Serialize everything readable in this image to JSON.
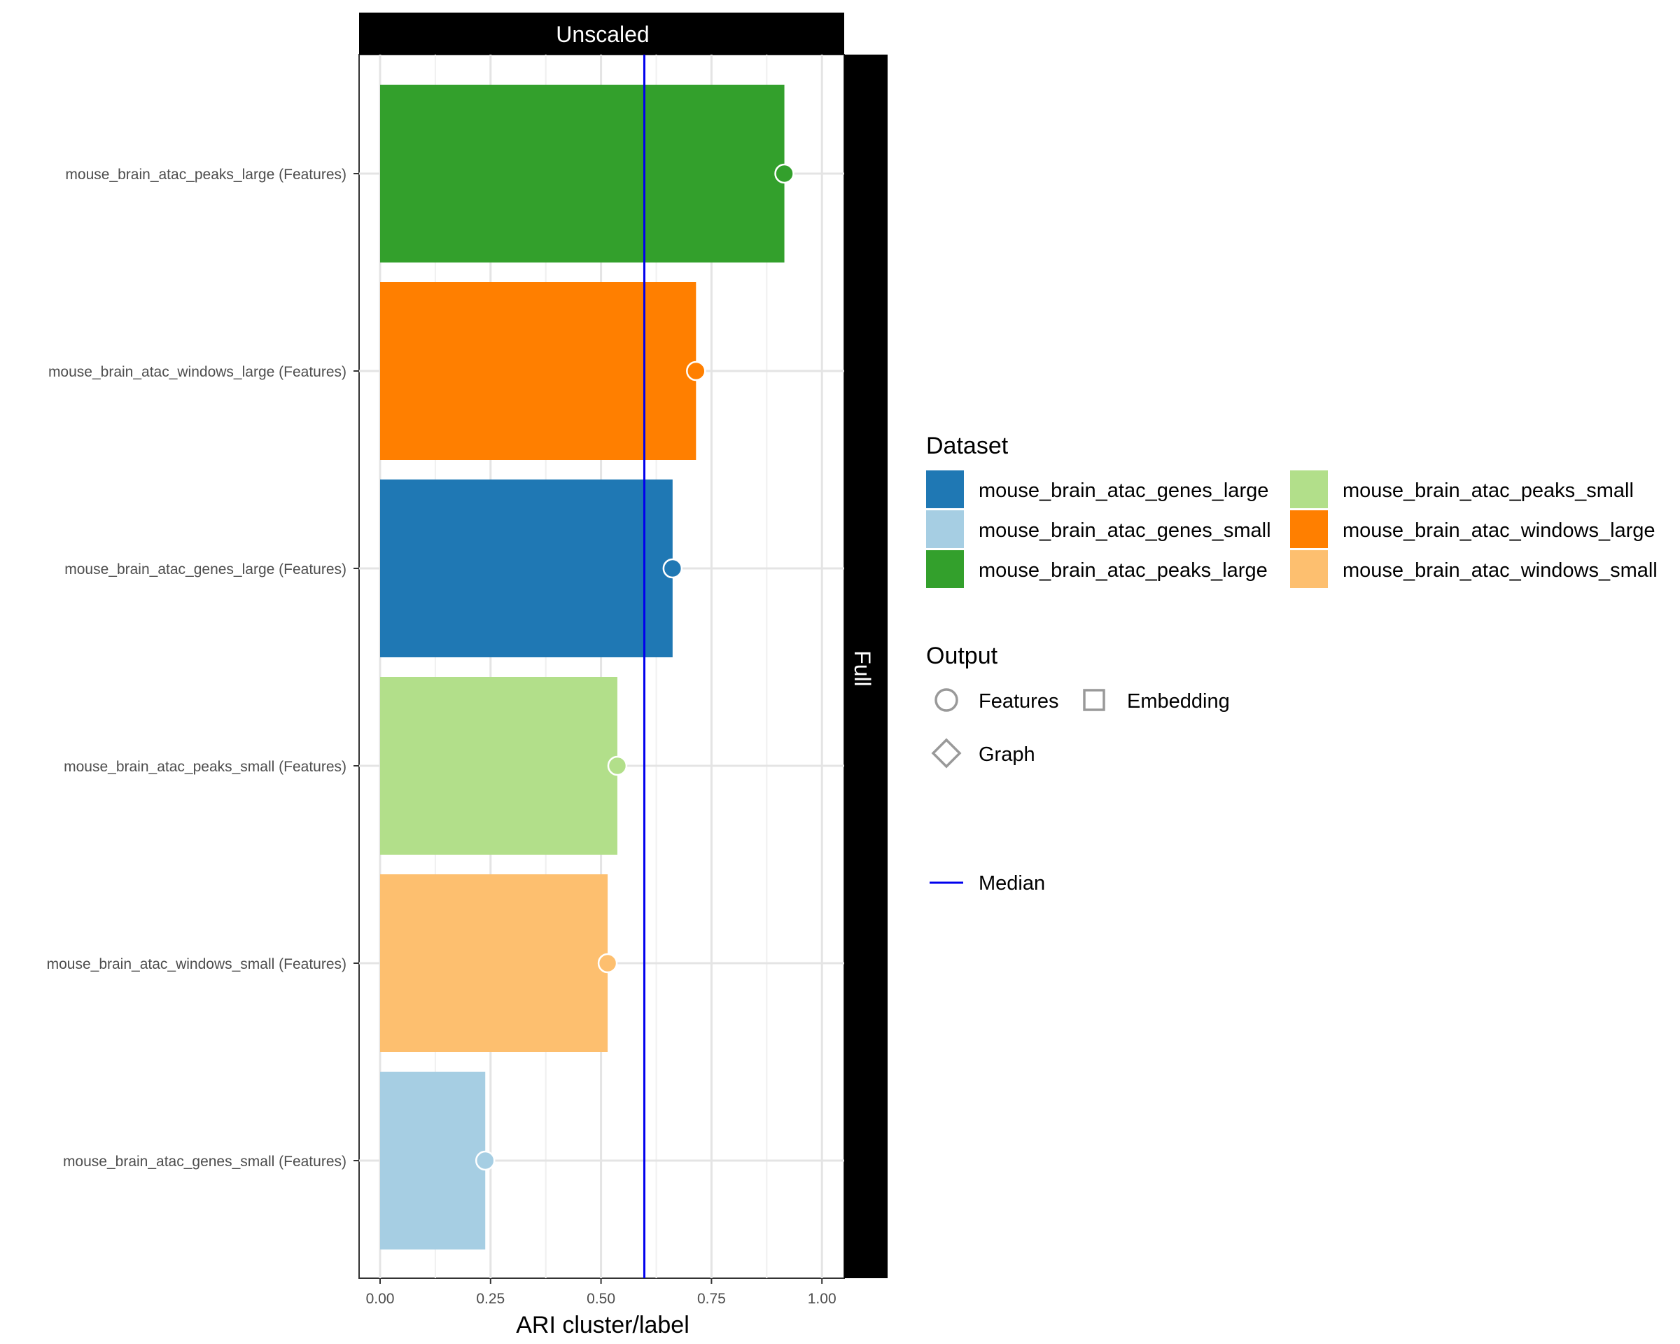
{
  "chart_data": {
    "type": "bar",
    "orientation": "horizontal",
    "facet_column": "Unscaled",
    "facet_row": "Full",
    "categories": [
      "mouse_brain_atac_peaks_large (Features)",
      "mouse_brain_atac_windows_large (Features)",
      "mouse_brain_atac_genes_large (Features)",
      "mouse_brain_atac_peaks_small (Features)",
      "mouse_brain_atac_windows_small (Features)",
      "mouse_brain_atac_genes_small (Features)"
    ],
    "values": [
      0.915,
      0.715,
      0.662,
      0.537,
      0.515,
      0.238
    ],
    "bar_datasets": [
      "mouse_brain_atac_peaks_large",
      "mouse_brain_atac_windows_large",
      "mouse_brain_atac_genes_large",
      "mouse_brain_atac_peaks_small",
      "mouse_brain_atac_windows_small",
      "mouse_brain_atac_genes_small"
    ],
    "point_shape": "Features",
    "median": 0.598,
    "xlabel": "ARI cluster/label",
    "ylabel": "",
    "xlim": [
      -0.05,
      1.05
    ],
    "x_ticks": [
      0,
      0.25,
      0.5,
      0.75,
      1.0
    ],
    "x_tick_labels": [
      "0.00",
      "0.25",
      "0.50",
      "0.75",
      "1.00"
    ],
    "grid": true,
    "legend_position": "right",
    "legend": {
      "dataset_title": "Dataset",
      "datasets": [
        {
          "name": "mouse_brain_atac_genes_large",
          "color": "#1f78b4"
        },
        {
          "name": "mouse_brain_atac_genes_small",
          "color": "#a6cee3"
        },
        {
          "name": "mouse_brain_atac_peaks_large",
          "color": "#33a02c"
        },
        {
          "name": "mouse_brain_atac_peaks_small",
          "color": "#b2df8a"
        },
        {
          "name": "mouse_brain_atac_windows_large",
          "color": "#ff7f00"
        },
        {
          "name": "mouse_brain_atac_windows_small",
          "color": "#fdbf6f"
        }
      ],
      "output_title": "Output",
      "outputs": [
        {
          "name": "Features",
          "shape": "circle"
        },
        {
          "name": "Embedding",
          "shape": "square"
        },
        {
          "name": "Graph",
          "shape": "diamond"
        }
      ],
      "median_label": "Median",
      "median_color": "#0000ee"
    }
  }
}
